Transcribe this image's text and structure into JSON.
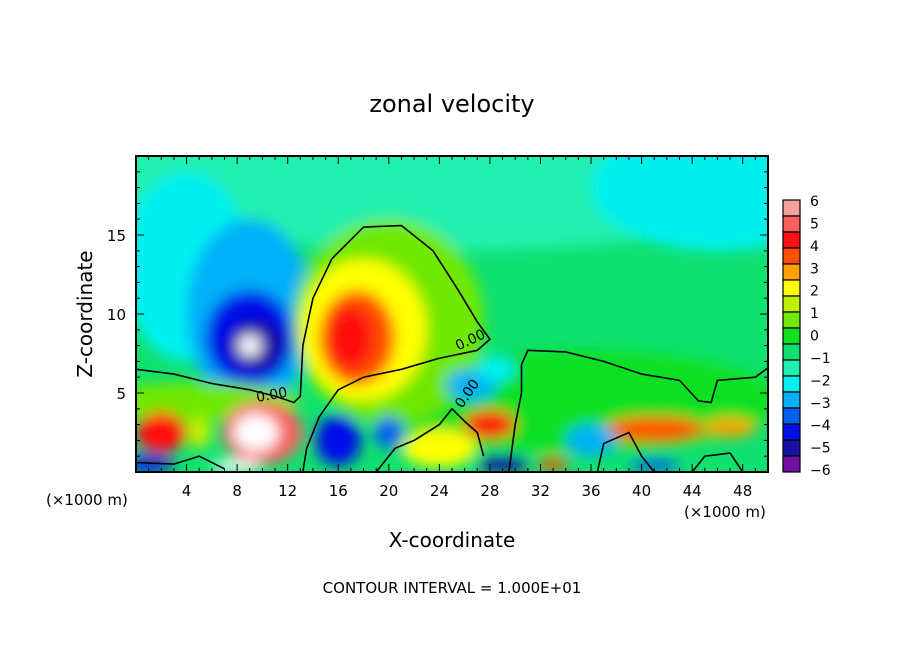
{
  "chart_data": {
    "type": "heatmap",
    "title": "zonal velocity",
    "xlabel": "X-coordinate",
    "ylabel": "Z-coordinate",
    "x_unit_left": "(×1000 m)",
    "x_unit_right": "(×1000 m)",
    "xlim": [
      0,
      50
    ],
    "ylim": [
      0,
      20
    ],
    "xticks": [
      4,
      8,
      12,
      16,
      20,
      24,
      28,
      32,
      36,
      40,
      44,
      48
    ],
    "yticks": [
      5,
      10,
      15
    ],
    "footer": "CONTOUR INTERVAL = 1.000E+01",
    "contour_label": "0.00",
    "colorbar": {
      "labels": [
        "6",
        "5",
        "4",
        "3",
        "2",
        "1",
        "0",
        "−1",
        "−2",
        "−3",
        "−4",
        "−5",
        "−6"
      ],
      "range": [
        -6,
        6
      ],
      "levels": [
        {
          "v": 6,
          "c": "#f8a0a0"
        },
        {
          "v": 5.25,
          "c": "#f86060"
        },
        {
          "v": 4.5,
          "c": "#ff1010"
        },
        {
          "v": 3.75,
          "c": "#ff5000"
        },
        {
          "v": 3,
          "c": "#ffa000"
        },
        {
          "v": 2.25,
          "c": "#ffff00"
        },
        {
          "v": 1.5,
          "c": "#c0f000"
        },
        {
          "v": 0.75,
          "c": "#70e800"
        },
        {
          "v": 0,
          "c": "#10e020"
        },
        {
          "v": -0.75,
          "c": "#10e070"
        },
        {
          "v": -1.5,
          "c": "#20f0b0"
        },
        {
          "v": -2.25,
          "c": "#00f0f0"
        },
        {
          "v": -3,
          "c": "#00b0f8"
        },
        {
          "v": -3.75,
          "c": "#0060f0"
        },
        {
          "v": -4.5,
          "c": "#0010e8"
        },
        {
          "v": -5.25,
          "c": "#1810a0"
        },
        {
          "v": -6,
          "c": "#7010a0"
        }
      ]
    },
    "background_value": -1,
    "features": [
      {
        "x": 25,
        "z": 19,
        "rx": 30,
        "rz": 5,
        "value": -1.8
      },
      {
        "x": 46,
        "z": 18,
        "rx": 10,
        "rz": 4,
        "value": -2.3
      },
      {
        "x": 4,
        "z": 13,
        "rx": 5,
        "rz": 6,
        "value": -2.4
      },
      {
        "x": 9,
        "z": 10,
        "rx": 5,
        "rz": 6,
        "value": -3.2
      },
      {
        "x": 9,
        "z": 8.5,
        "rx": 3.5,
        "rz": 3,
        "value": -4.6
      },
      {
        "x": 9.5,
        "z": 8,
        "rx": 2.2,
        "rz": 1.6,
        "value": -5.6
      },
      {
        "x": 9,
        "z": 8,
        "rx": 0.9,
        "rz": 0.7,
        "value": 7
      },
      {
        "x": 35,
        "z": 4.5,
        "rx": 16,
        "rz": 3.2,
        "value": 0.2
      },
      {
        "x": 20,
        "z": 9.5,
        "rx": 7.5,
        "rz": 6.5,
        "value": 0.6
      },
      {
        "x": 18,
        "z": 9,
        "rx": 5,
        "rz": 4.5,
        "value": 2.2
      },
      {
        "x": 17.5,
        "z": 8.5,
        "rx": 3,
        "rz": 3,
        "value": 3.6
      },
      {
        "x": 17,
        "z": 8.5,
        "rx": 1.8,
        "rz": 2,
        "value": 4.6
      },
      {
        "x": 5,
        "z": 4.5,
        "rx": 8,
        "rz": 1.2,
        "value": 0.8
      },
      {
        "x": 10,
        "z": 2.5,
        "rx": 3.2,
        "rz": 2,
        "value": 5
      },
      {
        "x": 9.5,
        "z": 2.5,
        "rx": 1.8,
        "rz": 1.2,
        "value": 7
      },
      {
        "x": 2,
        "z": 2.5,
        "rx": 2,
        "rz": 1.3,
        "value": 4.6
      },
      {
        "x": 5,
        "z": 2.5,
        "rx": 1,
        "rz": 1,
        "value": 1.5
      },
      {
        "x": 41,
        "z": 2.7,
        "rx": 4,
        "rz": 0.8,
        "value": 3.6
      },
      {
        "x": 47,
        "z": 2.8,
        "rx": 2,
        "rz": 0.6,
        "value": 3
      },
      {
        "x": 28,
        "z": 3,
        "rx": 2,
        "rz": 0.9,
        "value": 4.2
      },
      {
        "x": 24,
        "z": 1.5,
        "rx": 3,
        "rz": 1.2,
        "value": 2.5
      },
      {
        "x": 16,
        "z": 2,
        "rx": 1.8,
        "rz": 1.6,
        "value": -4.6
      },
      {
        "x": 20,
        "z": 2.5,
        "rx": 1.2,
        "rz": 1,
        "value": -4
      },
      {
        "x": 36,
        "z": 2,
        "rx": 2,
        "rz": 1,
        "value": -3
      },
      {
        "x": 26.5,
        "z": 5.5,
        "rx": 2,
        "rz": 1,
        "value": -3
      },
      {
        "x": 28.5,
        "z": 6.5,
        "rx": 1.5,
        "rz": 0.8,
        "value": -2.6
      },
      {
        "x": 1,
        "z": 0.5,
        "rx": 2,
        "rz": 0.5,
        "value": -4.6
      },
      {
        "x": 29,
        "z": 0.5,
        "rx": 2,
        "rz": 0.5,
        "value": -5
      },
      {
        "x": 41,
        "z": 0.4,
        "rx": 2,
        "rz": 0.4,
        "value": -3.5
      },
      {
        "x": 33,
        "z": 0.5,
        "rx": 1.2,
        "rz": 0.4,
        "value": 3.5
      },
      {
        "x": 8,
        "z": 0.4,
        "rx": 2,
        "rz": 0.4,
        "value": 7
      }
    ],
    "zero_contours": [
      [
        [
          0,
          6.5
        ],
        [
          3,
          6.2
        ],
        [
          6,
          5.6
        ],
        [
          9,
          5.2
        ],
        [
          11,
          4.8
        ],
        [
          12.5,
          4.4
        ],
        [
          13,
          4.8
        ],
        [
          13.2,
          8
        ],
        [
          14,
          11
        ],
        [
          15.5,
          13.5
        ],
        [
          18,
          15.5
        ],
        [
          21,
          15.6
        ],
        [
          23.5,
          14
        ],
        [
          25.5,
          11.5
        ],
        [
          27,
          9.5
        ],
        [
          28,
          8.4
        ],
        [
          27,
          7.7
        ],
        [
          24,
          7.2
        ],
        [
          21,
          6.5
        ],
        [
          18,
          6
        ],
        [
          16,
          5.2
        ],
        [
          14.5,
          3.5
        ],
        [
          13.5,
          1.5
        ],
        [
          13.2,
          0
        ]
      ],
      [
        [
          29.5,
          0
        ],
        [
          30,
          3
        ],
        [
          30.5,
          5
        ],
        [
          30.5,
          6.8
        ],
        [
          31,
          7.7
        ],
        [
          34,
          7.6
        ],
        [
          37,
          7
        ],
        [
          40,
          6.2
        ],
        [
          43,
          5.8
        ],
        [
          44.5,
          4.5
        ],
        [
          45.5,
          4.4
        ],
        [
          46,
          5.8
        ],
        [
          49,
          6
        ],
        [
          50,
          6.6
        ]
      ],
      [
        [
          0,
          0.6
        ],
        [
          3,
          0.5
        ],
        [
          5,
          1
        ],
        [
          7,
          0.2
        ]
      ],
      [
        [
          19,
          0
        ],
        [
          20.5,
          1.5
        ],
        [
          22,
          2
        ],
        [
          24,
          3
        ],
        [
          25,
          4
        ],
        [
          26,
          3.2
        ],
        [
          27,
          2.5
        ],
        [
          27.5,
          1
        ]
      ],
      [
        [
          36.5,
          0
        ],
        [
          37,
          1.8
        ],
        [
          39,
          2.5
        ],
        [
          40,
          1
        ],
        [
          41,
          0
        ]
      ],
      [
        [
          44,
          0
        ],
        [
          45,
          1
        ],
        [
          47,
          1.2
        ],
        [
          48,
          0
        ]
      ]
    ]
  }
}
